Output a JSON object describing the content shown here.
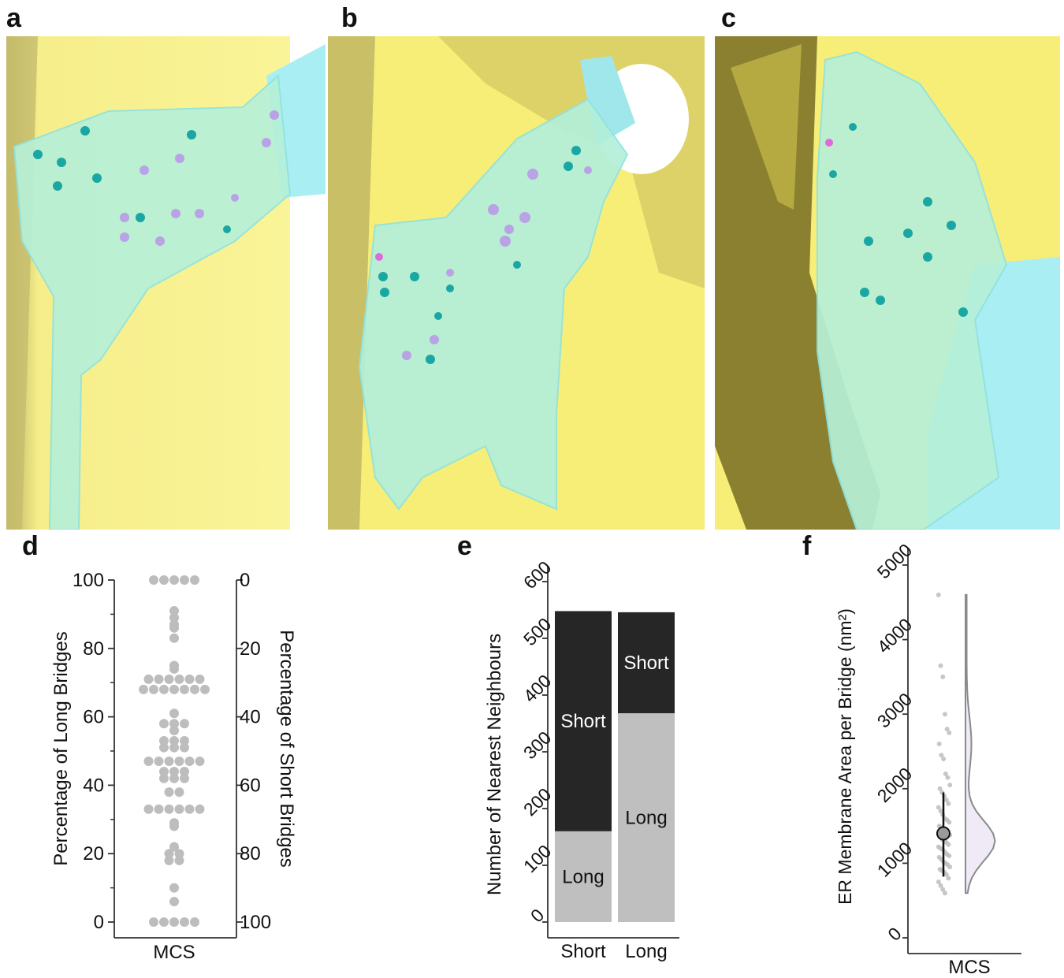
{
  "panels": {
    "a": {
      "letter": "a"
    },
    "b": {
      "letter": "b"
    },
    "c": {
      "letter": "c"
    },
    "d": {
      "letter": "d"
    },
    "e": {
      "letter": "e"
    },
    "f": {
      "letter": "f"
    }
  },
  "colors": {
    "yellow_membrane": "#f8f07a",
    "er_cyan": "#a9f2e6",
    "bridge_teal": "#1aa7a3",
    "bridge_lavender": "#b9a2e6",
    "dot_gray": "#bdbdbd",
    "bar_dark": "#262626",
    "bar_light": "#bfbfbf"
  },
  "chart_data": [
    {
      "id": "d",
      "type": "scatter",
      "category": "MCS",
      "ylabel_left": "Percentage of Long Bridges",
      "ylabel_right": "Percentage of Short Bridges",
      "ylim": [
        0,
        100
      ],
      "left_ticks": [
        "0",
        "20",
        "40",
        "60",
        "80",
        "100"
      ],
      "right_ticks": [
        "100",
        "80",
        "60",
        "40",
        "20",
        "0"
      ],
      "values": [
        100,
        100,
        100,
        100,
        100,
        91,
        89,
        87,
        86,
        83,
        75,
        74,
        71,
        71,
        71,
        71,
        71,
        71,
        68,
        68,
        68,
        68,
        68,
        68,
        68,
        61,
        58,
        58,
        58,
        56,
        53,
        53,
        53,
        51,
        51,
        51,
        47,
        47,
        47,
        47,
        47,
        47,
        44,
        44,
        44,
        42,
        42,
        42,
        38,
        38,
        33,
        33,
        33,
        33,
        33,
        33,
        29,
        28,
        22,
        20,
        20,
        18,
        18,
        10,
        6,
        0,
        0,
        0,
        0,
        0
      ]
    },
    {
      "id": "e",
      "type": "bar",
      "stacked": true,
      "categories": [
        "Short",
        "Long"
      ],
      "ylabel": "Number of Nearest Neighbours",
      "ylim": [
        0,
        600
      ],
      "yticks": [
        "0",
        "100",
        "200",
        "300",
        "400",
        "500",
        "600"
      ],
      "series": [
        {
          "name": "Long",
          "values": [
            160,
            368
          ]
        },
        {
          "name": "Short",
          "values": [
            388,
            178
          ]
        }
      ]
    },
    {
      "id": "f",
      "type": "scatter",
      "subtype": "raincloud",
      "category": "MCS",
      "ylabel": "ER Membrane Area per Bridge (nm²)",
      "ylim": [
        0,
        5000
      ],
      "yticks": [
        "0",
        "1000",
        "2000",
        "3000",
        "4000",
        "5000"
      ],
      "mean": 1400,
      "error_low": 820,
      "error_high": 1950,
      "values": [
        4600,
        3650,
        3500,
        3000,
        2800,
        2750,
        2600,
        2450,
        2400,
        2200,
        2150,
        2050,
        2000,
        1950,
        1900,
        1850,
        1800,
        1750,
        1700,
        1650,
        1600,
        1580,
        1550,
        1500,
        1480,
        1450,
        1420,
        1400,
        1380,
        1350,
        1320,
        1300,
        1280,
        1250,
        1220,
        1200,
        1180,
        1150,
        1120,
        1100,
        1080,
        1050,
        1020,
        1000,
        980,
        950,
        920,
        900,
        880,
        850,
        800,
        750,
        700,
        650,
        600
      ]
    }
  ]
}
